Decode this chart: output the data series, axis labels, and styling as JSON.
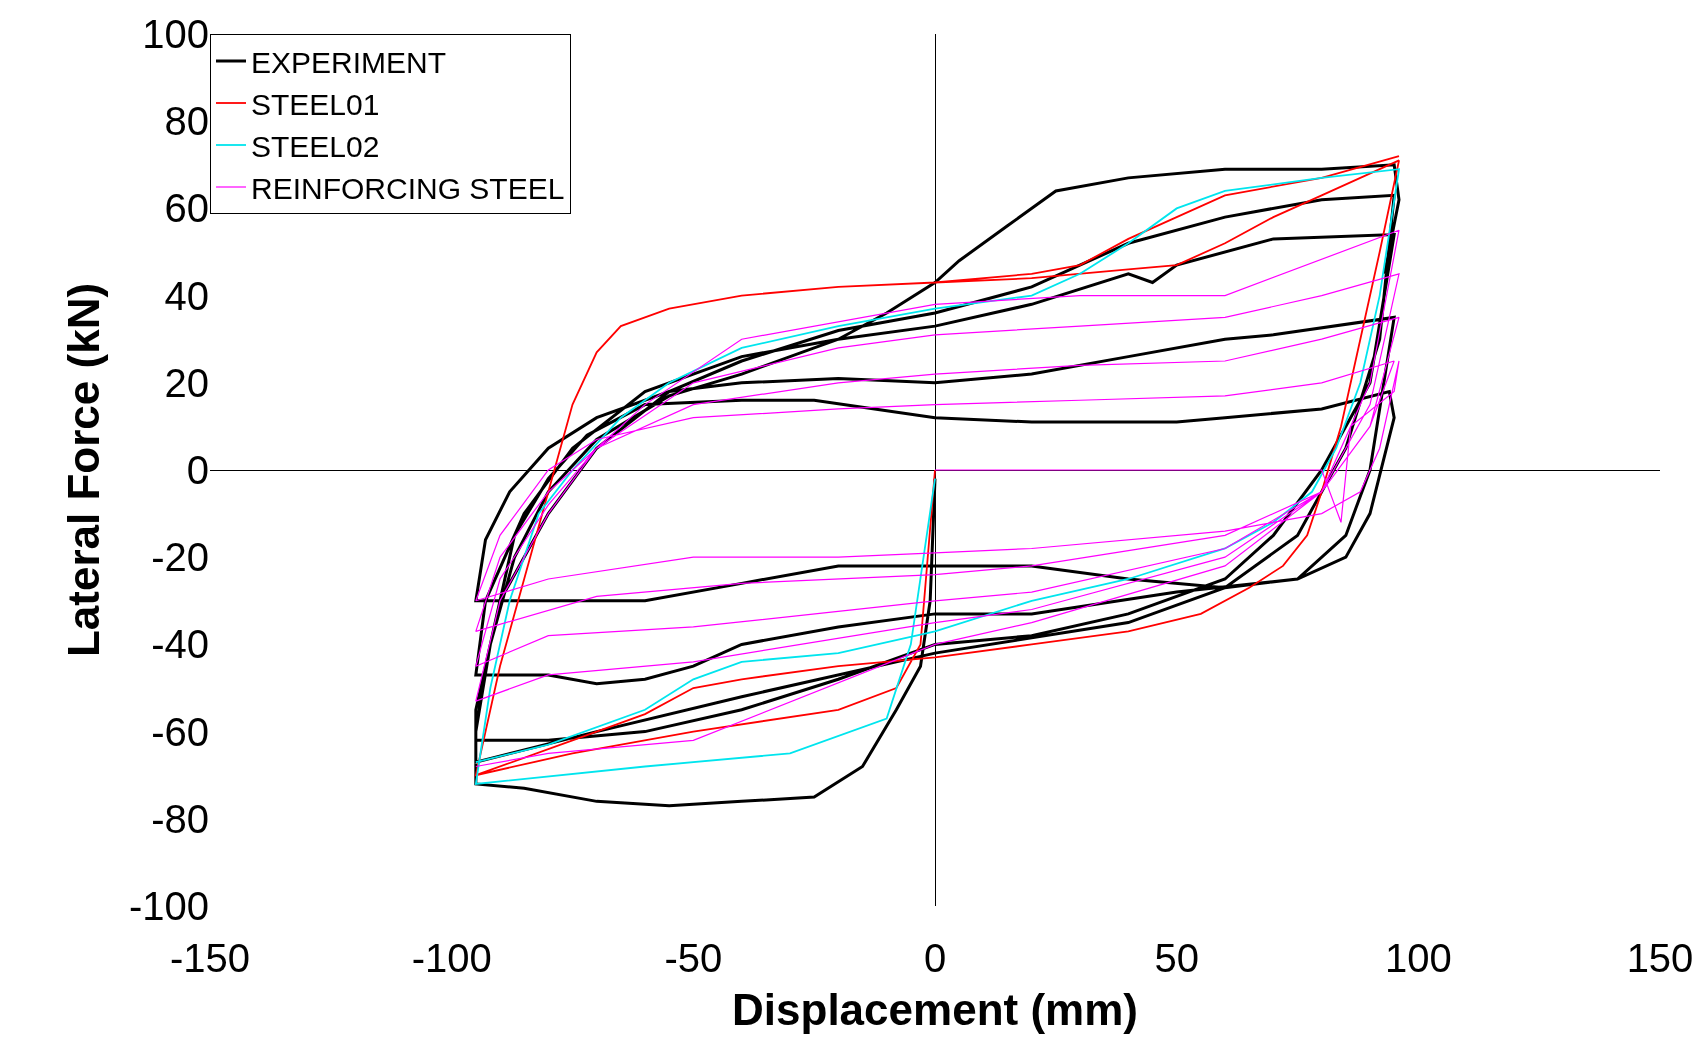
{
  "chart_data": {
    "type": "line",
    "xlabel": "Displacement (mm)",
    "ylabel": "Lateral Force (kN)",
    "xlim": [
      -150,
      150
    ],
    "ylim": [
      -100,
      100
    ],
    "xticks": [
      -150,
      -100,
      -50,
      0,
      50,
      100,
      150
    ],
    "yticks": [
      -100,
      -80,
      -60,
      -40,
      -20,
      0,
      20,
      40,
      60,
      80,
      100
    ],
    "legend": "top left",
    "marker": "none",
    "line_style": "solid",
    "series": [
      {
        "name": "EXPERIMENT",
        "color": "#000000",
        "x": [
          0,
          -1,
          -3,
          -8,
          -15,
          -25,
          -40,
          -55,
          -70,
          -85,
          -95,
          -95,
          -93,
          -90,
          -87,
          -80,
          -72,
          -60,
          -40,
          -25,
          0,
          20,
          50,
          60,
          80,
          94,
          95,
          90,
          85,
          75,
          60,
          40,
          20,
          0,
          -20,
          -40,
          -60,
          -80,
          -95,
          -93,
          -88,
          -80,
          -70,
          -55,
          -40,
          -20,
          0,
          20,
          40,
          60,
          70,
          95,
          90,
          85,
          75,
          50,
          20,
          0,
          -20,
          -40,
          -50,
          -60,
          -70,
          -80,
          -95,
          -93,
          -85,
          -75,
          -60,
          -40,
          -20,
          0,
          20,
          40,
          45,
          50,
          70,
          95,
          90,
          80,
          70,
          60,
          40,
          20,
          0,
          -20,
          -40,
          -60,
          -80,
          -95,
          -95,
          -90,
          -80,
          -70,
          -55,
          -40,
          -20,
          0,
          20,
          40,
          60,
          80,
          95,
          92,
          85,
          75,
          60,
          40,
          0,
          -40,
          -70,
          -95,
          -95,
          -92,
          -87,
          -80,
          -70,
          -55,
          -40,
          -20,
          -10,
          0,
          5,
          15,
          25,
          40,
          60,
          80,
          95,
          96,
          93
        ],
        "values": [
          -2,
          -30,
          -45,
          -55,
          -68,
          -75,
          -76,
          -77,
          -76,
          -73,
          -72,
          -60,
          -45,
          -30,
          -15,
          -2,
          8,
          15,
          16,
          16,
          12,
          11,
          11,
          12,
          14,
          18,
          12,
          -10,
          -20,
          -25,
          -27,
          -25,
          -22,
          -22,
          -22,
          -26,
          -30,
          -30,
          -30,
          -16,
          -5,
          5,
          12,
          18,
          20,
          21,
          20,
          22,
          26,
          30,
          31,
          35,
          0,
          -15,
          -25,
          -28,
          -33,
          -33,
          -36,
          -40,
          -45,
          -48,
          -49,
          -47,
          -47,
          -30,
          -10,
          5,
          18,
          26,
          30,
          33,
          38,
          45,
          43,
          47,
          53,
          54,
          20,
          0,
          -15,
          -25,
          -33,
          -38,
          -40,
          -48,
          -55,
          -60,
          -62,
          -62,
          -55,
          -30,
          -10,
          5,
          18,
          25,
          32,
          36,
          42,
          52,
          58,
          62,
          63,
          30,
          5,
          -15,
          -27,
          -35,
          -42,
          -52,
          -60,
          -67,
          -60,
          -40,
          -20,
          -5,
          7,
          17,
          22,
          30,
          36,
          43,
          48,
          56,
          64,
          67,
          69,
          69,
          70,
          62,
          45
        ]
      },
      {
        "name": "STEEL01",
        "color": "#ff0000",
        "x": [
          0,
          -3,
          -8,
          -20,
          -50,
          -75,
          -95,
          -90,
          -85,
          -80,
          -75,
          -70,
          -65,
          -55,
          -40,
          -20,
          0,
          20,
          40,
          50,
          60,
          70,
          80,
          96,
          92,
          88,
          84,
          80,
          77,
          72,
          65,
          55,
          40,
          20,
          0,
          -20,
          -40,
          -50,
          -60,
          -75,
          -95,
          -90,
          -85,
          -80,
          -75,
          -70,
          -65,
          -55,
          -40,
          -20,
          0,
          20,
          30,
          40,
          50,
          60,
          80,
          96
        ],
        "values": [
          0,
          -40,
          -50,
          -55,
          -60,
          -65,
          -70,
          -45,
          -25,
          -5,
          15,
          27,
          33,
          37,
          40,
          42,
          43,
          44,
          46,
          47,
          52,
          58,
          63,
          71,
          50,
          30,
          10,
          -5,
          -15,
          -22,
          -27,
          -33,
          -37,
          -40,
          -43,
          -45,
          -48,
          -50,
          -56,
          -62,
          -70,
          -45,
          -25,
          -5,
          15,
          27,
          33,
          37,
          40,
          42,
          43,
          45,
          47,
          53,
          58,
          63,
          67,
          72
        ]
      },
      {
        "name": "STEEL02",
        "color": "#00e5ee",
        "x": [
          0,
          -5,
          -10,
          -30,
          -60,
          -95,
          -92,
          -88,
          -82,
          -75,
          -65,
          -55,
          -40,
          -20,
          0,
          20,
          30,
          40,
          50,
          60,
          80,
          96,
          92,
          88,
          83,
          78,
          70,
          60,
          40,
          20,
          0,
          -20,
          -40,
          -50,
          -60,
          -80,
          -95
        ],
        "values": [
          -2,
          -40,
          -57,
          -65,
          -68,
          -72,
          -50,
          -30,
          -10,
          0,
          12,
          20,
          28,
          33,
          37,
          40,
          45,
          52,
          60,
          64,
          67,
          69,
          40,
          20,
          5,
          -5,
          -12,
          -18,
          -25,
          -30,
          -37,
          -42,
          -44,
          -48,
          -55,
          -63,
          -67
        ]
      },
      {
        "name": "REINFORCING STEEL",
        "color": "#ff00ff",
        "x": [
          0,
          80,
          84,
          86,
          95,
          96,
          92,
          88,
          80,
          60,
          20,
          0,
          -20,
          -50,
          -80,
          -95,
          -90,
          -80,
          -70,
          -50,
          -20,
          0,
          30,
          60,
          80,
          95,
          90,
          80,
          60,
          20,
          0,
          -40,
          -70,
          -95,
          -90,
          -80,
          -70,
          -50,
          -20,
          0,
          30,
          60,
          80,
          96,
          90,
          80,
          60,
          20,
          0,
          -50,
          -80,
          -95,
          -90,
          -80,
          -70,
          -50,
          -20,
          0,
          30,
          60,
          80,
          96,
          90,
          80,
          60,
          20,
          0,
          -50,
          -80,
          -95,
          -90,
          -80,
          -70,
          -60,
          -40,
          0,
          30,
          60,
          96,
          90,
          80,
          60,
          20,
          0,
          -50,
          -80,
          -95
        ],
        "values": [
          0,
          0,
          -12,
          10,
          18,
          25,
          5,
          -5,
          -10,
          -14,
          -18,
          -19,
          -20,
          -20,
          -25,
          -30,
          -15,
          0,
          7,
          12,
          14,
          15,
          16,
          17,
          20,
          25,
          10,
          -5,
          -15,
          -22,
          -24,
          -26,
          -29,
          -37,
          -20,
          -5,
          5,
          15,
          20,
          22,
          24,
          25,
          30,
          35,
          10,
          -5,
          -18,
          -28,
          -30,
          -36,
          -38,
          -45,
          -25,
          -8,
          5,
          20,
          28,
          31,
          33,
          35,
          40,
          45,
          15,
          -5,
          -20,
          -32,
          -35,
          -44,
          -47,
          -53,
          -30,
          -10,
          5,
          15,
          30,
          38,
          40,
          40,
          55,
          20,
          -5,
          -22,
          -35,
          -40,
          -62,
          -65,
          -68
        ]
      }
    ]
  }
}
